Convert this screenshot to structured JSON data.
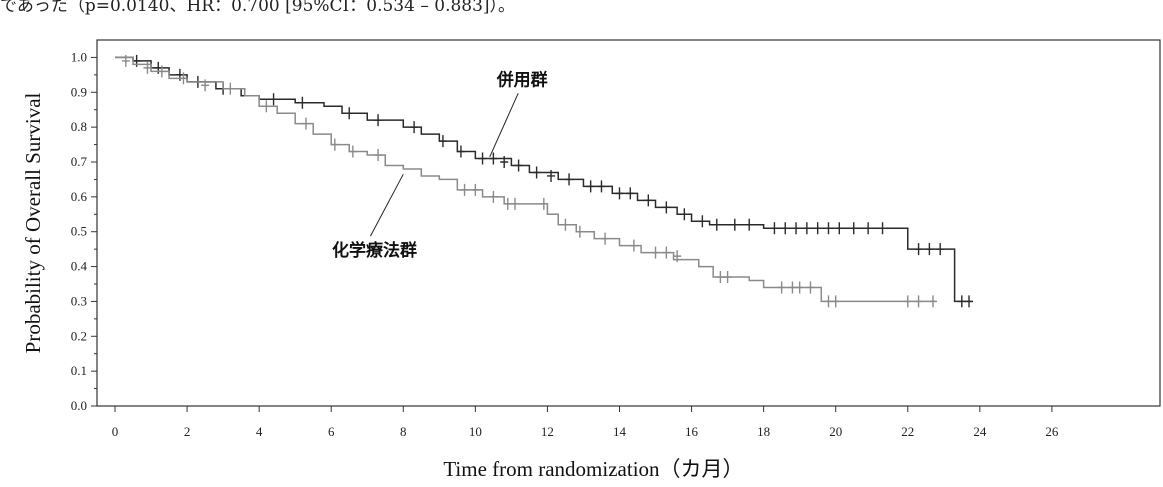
{
  "top_note": "であった（p=0.0140、HR：0.700 [95%CI：0.534 – 0.883]）。",
  "chart_data": {
    "type": "line",
    "subtype": "kaplan-meier step curve with censor marks",
    "title": "",
    "xlabel": "Time from randomization（カ月）",
    "ylabel": "Probability of Overall Survival",
    "xlim": [
      -0.5,
      29
    ],
    "ylim": [
      0.0,
      1.05
    ],
    "x_ticks": [
      0,
      2,
      4,
      6,
      8,
      10,
      12,
      14,
      16,
      18,
      20,
      22,
      24,
      26
    ],
    "y_ticks": [
      0.0,
      0.1,
      0.2,
      0.3,
      0.4,
      0.5,
      0.6,
      0.7,
      0.8,
      0.9,
      1.0
    ],
    "grid": false,
    "series": [
      {
        "name": "併用群",
        "color": "#2a2a2a",
        "steps": [
          [
            0,
            1.0
          ],
          [
            0.5,
            0.99
          ],
          [
            1.0,
            0.97
          ],
          [
            1.5,
            0.95
          ],
          [
            2.0,
            0.93
          ],
          [
            2.8,
            0.91
          ],
          [
            3.5,
            0.89
          ],
          [
            4.0,
            0.88
          ],
          [
            5.0,
            0.87
          ],
          [
            5.8,
            0.86
          ],
          [
            6.3,
            0.84
          ],
          [
            7.0,
            0.82
          ],
          [
            8.0,
            0.8
          ],
          [
            8.5,
            0.78
          ],
          [
            9.0,
            0.76
          ],
          [
            9.5,
            0.73
          ],
          [
            10.0,
            0.71
          ],
          [
            11.0,
            0.69
          ],
          [
            11.5,
            0.67
          ],
          [
            12.3,
            0.65
          ],
          [
            13.0,
            0.63
          ],
          [
            13.8,
            0.61
          ],
          [
            14.5,
            0.59
          ],
          [
            15.0,
            0.57
          ],
          [
            15.6,
            0.55
          ],
          [
            16.0,
            0.53
          ],
          [
            16.5,
            0.52
          ],
          [
            18.0,
            0.51
          ],
          [
            22.0,
            0.51
          ],
          [
            22.0,
            0.45
          ],
          [
            23.3,
            0.45
          ],
          [
            23.3,
            0.3
          ],
          [
            23.8,
            0.3
          ]
        ],
        "censored": [
          [
            0.6,
            0.99
          ],
          [
            1.2,
            0.97
          ],
          [
            1.8,
            0.95
          ],
          [
            2.3,
            0.93
          ],
          [
            3.0,
            0.91
          ],
          [
            4.4,
            0.88
          ],
          [
            5.2,
            0.87
          ],
          [
            6.5,
            0.84
          ],
          [
            7.3,
            0.82
          ],
          [
            8.3,
            0.8
          ],
          [
            9.1,
            0.76
          ],
          [
            9.6,
            0.73
          ],
          [
            10.2,
            0.71
          ],
          [
            10.5,
            0.71
          ],
          [
            10.8,
            0.7
          ],
          [
            11.2,
            0.69
          ],
          [
            11.7,
            0.67
          ],
          [
            12.1,
            0.66
          ],
          [
            12.6,
            0.65
          ],
          [
            13.2,
            0.63
          ],
          [
            13.5,
            0.63
          ],
          [
            14.0,
            0.61
          ],
          [
            14.3,
            0.61
          ],
          [
            14.8,
            0.59
          ],
          [
            15.3,
            0.57
          ],
          [
            15.8,
            0.55
          ],
          [
            16.3,
            0.53
          ],
          [
            16.7,
            0.52
          ],
          [
            17.2,
            0.52
          ],
          [
            17.6,
            0.52
          ],
          [
            18.3,
            0.51
          ],
          [
            18.6,
            0.51
          ],
          [
            18.9,
            0.51
          ],
          [
            19.2,
            0.51
          ],
          [
            19.5,
            0.51
          ],
          [
            19.8,
            0.51
          ],
          [
            20.1,
            0.51
          ],
          [
            20.5,
            0.51
          ],
          [
            20.9,
            0.51
          ],
          [
            21.3,
            0.51
          ],
          [
            22.3,
            0.45
          ],
          [
            22.6,
            0.45
          ],
          [
            22.9,
            0.45
          ],
          [
            23.5,
            0.3
          ],
          [
            23.7,
            0.3
          ]
        ]
      },
      {
        "name": "化学療法群",
        "color": "#8a8a8a",
        "steps": [
          [
            0,
            1.0
          ],
          [
            0.5,
            0.98
          ],
          [
            1.0,
            0.96
          ],
          [
            1.5,
            0.94
          ],
          [
            2.0,
            0.93
          ],
          [
            3.0,
            0.91
          ],
          [
            3.6,
            0.89
          ],
          [
            4.0,
            0.86
          ],
          [
            4.5,
            0.84
          ],
          [
            5.0,
            0.81
          ],
          [
            5.5,
            0.78
          ],
          [
            6.0,
            0.75
          ],
          [
            6.5,
            0.73
          ],
          [
            7.0,
            0.72
          ],
          [
            7.5,
            0.69
          ],
          [
            8.0,
            0.68
          ],
          [
            8.5,
            0.66
          ],
          [
            9.0,
            0.65
          ],
          [
            9.5,
            0.62
          ],
          [
            10.2,
            0.6
          ],
          [
            10.8,
            0.58
          ],
          [
            12.0,
            0.55
          ],
          [
            12.3,
            0.52
          ],
          [
            12.8,
            0.5
          ],
          [
            13.3,
            0.48
          ],
          [
            14.0,
            0.46
          ],
          [
            14.6,
            0.44
          ],
          [
            15.5,
            0.42
          ],
          [
            16.2,
            0.4
          ],
          [
            16.6,
            0.37
          ],
          [
            17.6,
            0.36
          ],
          [
            18.0,
            0.34
          ],
          [
            19.6,
            0.34
          ],
          [
            19.6,
            0.3
          ],
          [
            22.8,
            0.3
          ]
        ],
        "censored": [
          [
            0.3,
            0.99
          ],
          [
            0.9,
            0.97
          ],
          [
            1.3,
            0.96
          ],
          [
            1.9,
            0.94
          ],
          [
            2.5,
            0.92
          ],
          [
            3.2,
            0.91
          ],
          [
            4.2,
            0.86
          ],
          [
            5.3,
            0.81
          ],
          [
            6.1,
            0.75
          ],
          [
            6.6,
            0.73
          ],
          [
            7.3,
            0.72
          ],
          [
            9.7,
            0.62
          ],
          [
            10.0,
            0.62
          ],
          [
            10.5,
            0.6
          ],
          [
            10.9,
            0.58
          ],
          [
            11.1,
            0.58
          ],
          [
            11.9,
            0.58
          ],
          [
            12.5,
            0.52
          ],
          [
            12.9,
            0.5
          ],
          [
            13.6,
            0.48
          ],
          [
            14.4,
            0.46
          ],
          [
            15.0,
            0.44
          ],
          [
            15.3,
            0.44
          ],
          [
            15.6,
            0.43
          ],
          [
            16.8,
            0.37
          ],
          [
            17.0,
            0.37
          ],
          [
            18.5,
            0.34
          ],
          [
            18.8,
            0.34
          ],
          [
            19.0,
            0.34
          ],
          [
            19.3,
            0.34
          ],
          [
            19.8,
            0.3
          ],
          [
            20.0,
            0.3
          ],
          [
            22.0,
            0.3
          ],
          [
            22.3,
            0.3
          ],
          [
            22.7,
            0.3
          ]
        ]
      }
    ],
    "annotations": [
      {
        "text": "併用群",
        "x": 11.3,
        "y": 0.92,
        "arrow_to": [
          10.4,
          0.715
        ]
      },
      {
        "text": "化学療法群",
        "x": 7.2,
        "y": 0.43,
        "arrow_to": [
          8.0,
          0.665
        ]
      }
    ]
  }
}
